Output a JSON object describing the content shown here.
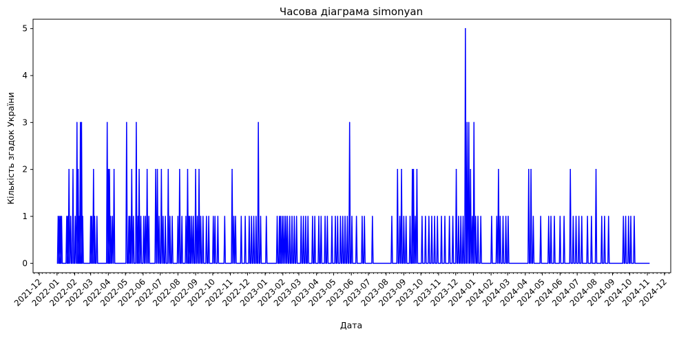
{
  "chart_data": {
    "type": "line",
    "title": "Часова діаграма simonyan",
    "xlabel": "Дата",
    "ylabel": "Кількість згадок України",
    "x_axis": {
      "kind": "date",
      "range": [
        "2021-11-20",
        "2024-12-12"
      ],
      "tick_labels": [
        "2021-12",
        "2022-01",
        "2022-02",
        "2022-03",
        "2022-04",
        "2022-05",
        "2022-06",
        "2022-07",
        "2022-08",
        "2022-09",
        "2022-10",
        "2022-11",
        "2022-12",
        "2023-01",
        "2023-02",
        "2023-03",
        "2023-04",
        "2023-05",
        "2023-06",
        "2023-07",
        "2023-08",
        "2023-09",
        "2023-10",
        "2023-11",
        "2023-12",
        "2024-01",
        "2024-02",
        "2024-03",
        "2024-04",
        "2024-05",
        "2024-06",
        "2024-07",
        "2024-08",
        "2024-09",
        "2024-10",
        "2024-11",
        "2024-12"
      ],
      "tick_label_rotation": 45
    },
    "y_axis": {
      "range": [
        -0.2,
        5.2
      ],
      "ticks": [
        0,
        1,
        2,
        3,
        4,
        5
      ]
    },
    "grid": false,
    "legend": "none",
    "series": [
      {
        "color": "#0000ff",
        "baseline": 0,
        "x_start": "2022-01-01",
        "x_end": "2024-11-05",
        "points": [
          [
            "2022-01-03",
            1
          ],
          [
            "2022-01-05",
            1
          ],
          [
            "2022-01-07",
            1
          ],
          [
            "2022-01-09",
            1
          ],
          [
            "2022-01-18",
            1
          ],
          [
            "2022-01-20",
            1
          ],
          [
            "2022-01-22",
            2
          ],
          [
            "2022-01-25",
            1
          ],
          [
            "2022-01-29",
            2
          ],
          [
            "2022-02-02",
            1
          ],
          [
            "2022-02-05",
            3
          ],
          [
            "2022-02-07",
            2
          ],
          [
            "2022-02-09",
            1
          ],
          [
            "2022-02-11",
            3
          ],
          [
            "2022-02-13",
            3
          ],
          [
            "2022-02-15",
            1
          ],
          [
            "2022-03-01",
            1
          ],
          [
            "2022-03-03",
            1
          ],
          [
            "2022-03-06",
            2
          ],
          [
            "2022-03-08",
            1
          ],
          [
            "2022-03-12",
            1
          ],
          [
            "2022-03-30",
            3
          ],
          [
            "2022-04-01",
            2
          ],
          [
            "2022-04-03",
            2
          ],
          [
            "2022-04-05",
            1
          ],
          [
            "2022-04-08",
            1
          ],
          [
            "2022-04-11",
            2
          ],
          [
            "2022-05-03",
            3
          ],
          [
            "2022-05-07",
            1
          ],
          [
            "2022-05-09",
            1
          ],
          [
            "2022-05-12",
            2
          ],
          [
            "2022-05-15",
            1
          ],
          [
            "2022-05-20",
            3
          ],
          [
            "2022-05-23",
            1
          ],
          [
            "2022-05-25",
            2
          ],
          [
            "2022-05-28",
            1
          ],
          [
            "2022-06-02",
            1
          ],
          [
            "2022-06-05",
            1
          ],
          [
            "2022-06-08",
            2
          ],
          [
            "2022-06-11",
            1
          ],
          [
            "2022-06-23",
            2
          ],
          [
            "2022-06-26",
            2
          ],
          [
            "2022-06-29",
            1
          ],
          [
            "2022-07-03",
            2
          ],
          [
            "2022-07-06",
            1
          ],
          [
            "2022-07-10",
            1
          ],
          [
            "2022-07-15",
            2
          ],
          [
            "2022-07-18",
            1
          ],
          [
            "2022-07-22",
            1
          ],
          [
            "2022-08-01",
            1
          ],
          [
            "2022-08-04",
            2
          ],
          [
            "2022-08-08",
            1
          ],
          [
            "2022-08-15",
            1
          ],
          [
            "2022-08-18",
            2
          ],
          [
            "2022-08-20",
            1
          ],
          [
            "2022-08-22",
            1
          ],
          [
            "2022-08-25",
            1
          ],
          [
            "2022-08-28",
            1
          ],
          [
            "2022-09-01",
            2
          ],
          [
            "2022-09-04",
            1
          ],
          [
            "2022-09-07",
            2
          ],
          [
            "2022-09-10",
            1
          ],
          [
            "2022-09-14",
            1
          ],
          [
            "2022-09-20",
            1
          ],
          [
            "2022-09-24",
            1
          ],
          [
            "2022-10-02",
            1
          ],
          [
            "2022-10-05",
            1
          ],
          [
            "2022-10-10",
            1
          ],
          [
            "2022-10-22",
            1
          ],
          [
            "2022-11-04",
            2
          ],
          [
            "2022-11-07",
            1
          ],
          [
            "2022-11-10",
            1
          ],
          [
            "2022-11-20",
            1
          ],
          [
            "2022-11-27",
            1
          ],
          [
            "2022-12-04",
            1
          ],
          [
            "2022-12-08",
            1
          ],
          [
            "2022-12-12",
            1
          ],
          [
            "2022-12-16",
            1
          ],
          [
            "2022-12-20",
            3
          ],
          [
            "2022-12-24",
            1
          ],
          [
            "2023-01-03",
            1
          ],
          [
            "2023-01-22",
            1
          ],
          [
            "2023-01-26",
            1
          ],
          [
            "2023-01-28",
            1
          ],
          [
            "2023-01-31",
            1
          ],
          [
            "2023-02-03",
            1
          ],
          [
            "2023-02-06",
            1
          ],
          [
            "2023-02-09",
            1
          ],
          [
            "2023-02-13",
            1
          ],
          [
            "2023-02-17",
            1
          ],
          [
            "2023-02-21",
            1
          ],
          [
            "2023-02-25",
            1
          ],
          [
            "2023-03-05",
            1
          ],
          [
            "2023-03-09",
            1
          ],
          [
            "2023-03-13",
            1
          ],
          [
            "2023-03-17",
            1
          ],
          [
            "2023-03-25",
            1
          ],
          [
            "2023-03-29",
            1
          ],
          [
            "2023-04-05",
            1
          ],
          [
            "2023-04-09",
            1
          ],
          [
            "2023-04-16",
            1
          ],
          [
            "2023-04-20",
            1
          ],
          [
            "2023-04-28",
            1
          ],
          [
            "2023-05-04",
            1
          ],
          [
            "2023-05-08",
            1
          ],
          [
            "2023-05-13",
            1
          ],
          [
            "2023-05-17",
            1
          ],
          [
            "2023-05-21",
            1
          ],
          [
            "2023-05-25",
            1
          ],
          [
            "2023-05-29",
            3
          ],
          [
            "2023-06-02",
            1
          ],
          [
            "2023-06-10",
            1
          ],
          [
            "2023-06-20",
            1
          ],
          [
            "2023-06-24",
            1
          ],
          [
            "2023-07-08",
            1
          ],
          [
            "2023-08-11",
            1
          ],
          [
            "2023-08-21",
            2
          ],
          [
            "2023-08-25",
            1
          ],
          [
            "2023-08-28",
            2
          ],
          [
            "2023-09-01",
            1
          ],
          [
            "2023-09-05",
            1
          ],
          [
            "2023-09-12",
            1
          ],
          [
            "2023-09-16",
            2
          ],
          [
            "2023-09-18",
            2
          ],
          [
            "2023-09-21",
            1
          ],
          [
            "2023-09-24",
            2
          ],
          [
            "2023-10-03",
            1
          ],
          [
            "2023-10-09",
            1
          ],
          [
            "2023-10-15",
            1
          ],
          [
            "2023-10-20",
            1
          ],
          [
            "2023-10-25",
            1
          ],
          [
            "2023-10-30",
            1
          ],
          [
            "2023-11-06",
            1
          ],
          [
            "2023-11-12",
            1
          ],
          [
            "2023-11-20",
            1
          ],
          [
            "2023-11-26",
            1
          ],
          [
            "2023-12-02",
            2
          ],
          [
            "2023-12-06",
            1
          ],
          [
            "2023-12-10",
            1
          ],
          [
            "2023-12-14",
            1
          ],
          [
            "2023-12-18",
            5
          ],
          [
            "2023-12-21",
            3
          ],
          [
            "2023-12-24",
            3
          ],
          [
            "2023-12-27",
            2
          ],
          [
            "2023-12-30",
            1
          ],
          [
            "2024-01-02",
            3
          ],
          [
            "2024-01-05",
            1
          ],
          [
            "2024-01-09",
            1
          ],
          [
            "2024-01-14",
            1
          ],
          [
            "2024-02-02",
            1
          ],
          [
            "2024-02-11",
            1
          ],
          [
            "2024-02-14",
            2
          ],
          [
            "2024-02-17",
            1
          ],
          [
            "2024-02-22",
            1
          ],
          [
            "2024-02-27",
            1
          ],
          [
            "2024-03-02",
            1
          ],
          [
            "2024-04-07",
            2
          ],
          [
            "2024-04-11",
            2
          ],
          [
            "2024-04-15",
            1
          ],
          [
            "2024-04-28",
            1
          ],
          [
            "2024-05-12",
            1
          ],
          [
            "2024-05-16",
            1
          ],
          [
            "2024-05-22",
            1
          ],
          [
            "2024-06-01",
            1
          ],
          [
            "2024-06-08",
            1
          ],
          [
            "2024-06-19",
            2
          ],
          [
            "2024-06-24",
            1
          ],
          [
            "2024-06-29",
            1
          ],
          [
            "2024-07-04",
            1
          ],
          [
            "2024-07-09",
            1
          ],
          [
            "2024-07-19",
            1
          ],
          [
            "2024-07-26",
            1
          ],
          [
            "2024-08-03",
            2
          ],
          [
            "2024-08-13",
            1
          ],
          [
            "2024-08-18",
            1
          ],
          [
            "2024-08-25",
            1
          ],
          [
            "2024-09-20",
            1
          ],
          [
            "2024-09-24",
            1
          ],
          [
            "2024-09-29",
            1
          ],
          [
            "2024-10-03",
            1
          ],
          [
            "2024-10-09",
            1
          ]
        ]
      }
    ]
  }
}
